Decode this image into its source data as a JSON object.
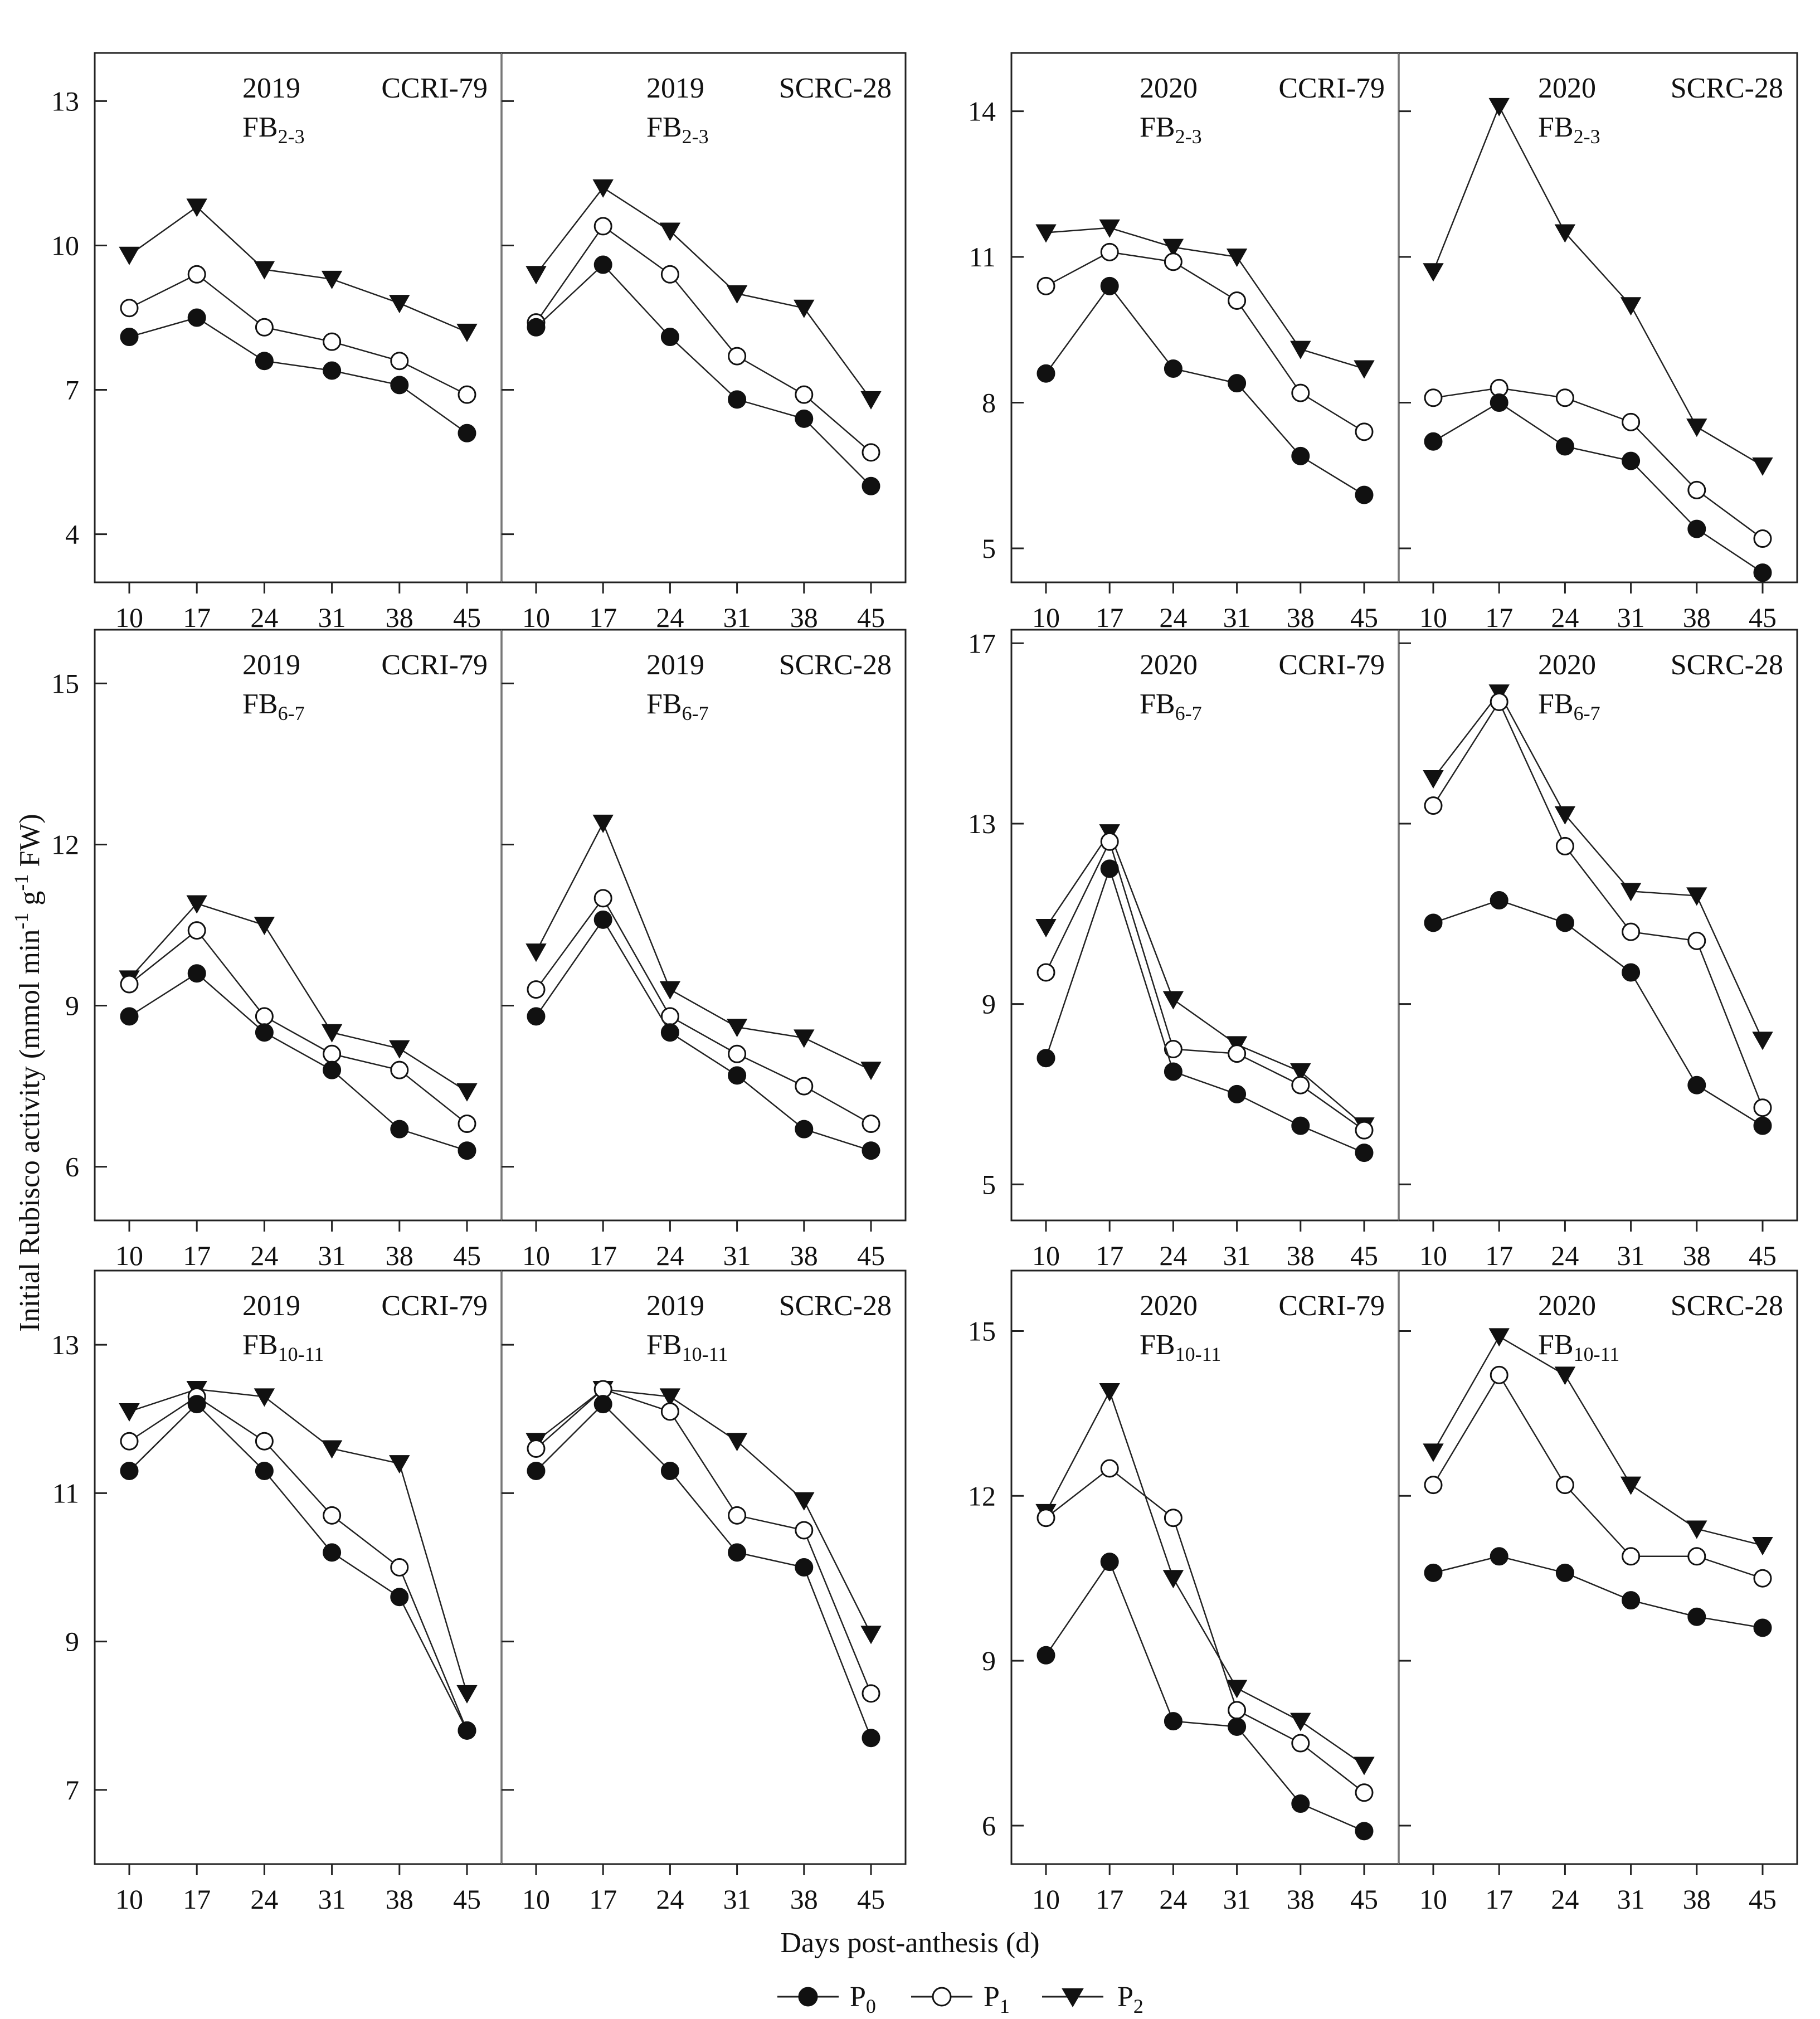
{
  "figure": {
    "ylabel": "Initial Rubisco activity (mmol min",
    "ylabel_sup1": "-1",
    "ylabel_mid": " g",
    "ylabel_sup2": "-1",
    "ylabel_end": " FW)",
    "xlabel": "Days post-anthesis (d)",
    "legend": [
      {
        "marker": "filled-circle",
        "label": "P",
        "sub": "0"
      },
      {
        "marker": "open-circle",
        "label": "P",
        "sub": "1"
      },
      {
        "marker": "filled-triangle",
        "label": "P",
        "sub": "2"
      }
    ]
  },
  "chart_data": [
    {
      "type": "line",
      "panel": "2019-CCRI-79-FB2-3",
      "title": {
        "year": "2019",
        "cultivar": "CCRI-79",
        "fb": "FB",
        "fb_sub": "2-3"
      },
      "x": [
        10,
        17,
        24,
        31,
        38,
        45
      ],
      "ylim": [
        3,
        14
      ],
      "yticks": [
        4,
        7,
        10,
        13
      ],
      "series": [
        {
          "name": "P0",
          "values": [
            8.1,
            8.5,
            7.6,
            7.4,
            7.1,
            6.1
          ]
        },
        {
          "name": "P1",
          "values": [
            8.7,
            9.4,
            8.3,
            8.0,
            7.6,
            6.9
          ]
        },
        {
          "name": "P2",
          "values": [
            9.8,
            10.8,
            9.5,
            9.3,
            8.8,
            8.2
          ]
        }
      ]
    },
    {
      "type": "line",
      "panel": "2019-SCRC-28-FB2-3",
      "title": {
        "year": "2019",
        "cultivar": "SCRC-28",
        "fb": "FB",
        "fb_sub": "2-3"
      },
      "x": [
        10,
        17,
        24,
        31,
        38,
        45
      ],
      "ylim": [
        3,
        14
      ],
      "yticks": [
        4,
        7,
        10,
        13
      ],
      "series": [
        {
          "name": "P0",
          "values": [
            8.3,
            9.6,
            8.1,
            6.8,
            6.4,
            5.0
          ]
        },
        {
          "name": "P1",
          "values": [
            8.4,
            10.4,
            9.4,
            7.7,
            6.9,
            5.7
          ]
        },
        {
          "name": "P2",
          "values": [
            9.4,
            11.2,
            10.3,
            9.0,
            8.7,
            6.8
          ]
        }
      ]
    },
    {
      "type": "line",
      "panel": "2020-CCRI-79-FB2-3",
      "title": {
        "year": "2020",
        "cultivar": "CCRI-79",
        "fb": "FB",
        "fb_sub": "2-3"
      },
      "x": [
        10,
        17,
        24,
        31,
        38,
        45
      ],
      "ylim": [
        4.3,
        15.2
      ],
      "yticks": [
        5,
        8,
        11,
        14
      ],
      "series": [
        {
          "name": "P0",
          "values": [
            8.6,
            10.4,
            8.7,
            8.4,
            6.9,
            6.1
          ]
        },
        {
          "name": "P1",
          "values": [
            10.4,
            11.1,
            10.9,
            10.1,
            8.2,
            7.4
          ]
        },
        {
          "name": "P2",
          "values": [
            11.5,
            11.6,
            11.2,
            11.0,
            9.1,
            8.7
          ]
        }
      ]
    },
    {
      "type": "line",
      "panel": "2020-SCRC-28-FB2-3",
      "title": {
        "year": "2020",
        "cultivar": "SCRC-28",
        "fb": "FB",
        "fb_sub": "2-3"
      },
      "x": [
        10,
        17,
        24,
        31,
        38,
        45
      ],
      "ylim": [
        4.3,
        15.2
      ],
      "yticks": [
        5,
        8,
        11,
        14
      ],
      "series": [
        {
          "name": "P0",
          "values": [
            7.2,
            8.0,
            7.1,
            6.8,
            5.4,
            4.5
          ]
        },
        {
          "name": "P1",
          "values": [
            8.1,
            8.3,
            8.1,
            7.6,
            6.2,
            5.2
          ]
        },
        {
          "name": "P2",
          "values": [
            10.7,
            14.1,
            11.5,
            10.0,
            7.5,
            6.7
          ]
        }
      ]
    },
    {
      "type": "line",
      "panel": "2019-CCRI-79-FB6-7",
      "title": {
        "year": "2019",
        "cultivar": "CCRI-79",
        "fb": "FB",
        "fb_sub": "6-7"
      },
      "x": [
        10,
        17,
        24,
        31,
        38,
        45
      ],
      "ylim": [
        5,
        16
      ],
      "yticks": [
        6,
        9,
        12,
        15
      ],
      "series": [
        {
          "name": "P0",
          "values": [
            8.8,
            9.6,
            8.5,
            7.8,
            6.7,
            6.3
          ]
        },
        {
          "name": "P1",
          "values": [
            9.4,
            10.4,
            8.8,
            8.1,
            7.8,
            6.8
          ]
        },
        {
          "name": "P2",
          "values": [
            9.5,
            10.9,
            10.5,
            8.5,
            8.2,
            7.4
          ]
        }
      ]
    },
    {
      "type": "line",
      "panel": "2019-SCRC-28-FB6-7",
      "title": {
        "year": "2019",
        "cultivar": "SCRC-28",
        "fb": "FB",
        "fb_sub": "6-7"
      },
      "x": [
        10,
        17,
        24,
        31,
        38,
        45
      ],
      "ylim": [
        5,
        16
      ],
      "yticks": [
        6,
        9,
        12,
        15
      ],
      "series": [
        {
          "name": "P0",
          "values": [
            8.8,
            10.6,
            8.5,
            7.7,
            6.7,
            6.3
          ]
        },
        {
          "name": "P1",
          "values": [
            9.3,
            11.0,
            8.8,
            8.1,
            7.5,
            6.8
          ]
        },
        {
          "name": "P2",
          "values": [
            10.0,
            12.4,
            9.3,
            8.6,
            8.4,
            7.8
          ]
        }
      ]
    },
    {
      "type": "line",
      "panel": "2020-CCRI-79-FB6-7",
      "title": {
        "year": "2020",
        "cultivar": "CCRI-79",
        "fb": "FB",
        "fb_sub": "6-7"
      },
      "x": [
        10,
        17,
        24,
        31,
        38,
        45
      ],
      "ylim": [
        4.2,
        17.3
      ],
      "yticks": [
        5,
        9,
        13,
        17
      ],
      "series": [
        {
          "name": "P0",
          "values": [
            7.8,
            12.0,
            7.5,
            7.0,
            6.3,
            5.7
          ]
        },
        {
          "name": "P1",
          "values": [
            9.7,
            12.6,
            8.0,
            7.9,
            7.2,
            6.2
          ]
        },
        {
          "name": "P2",
          "values": [
            10.7,
            12.8,
            9.1,
            8.1,
            7.5,
            6.3
          ]
        }
      ]
    },
    {
      "type": "line",
      "panel": "2020-SCRC-28-FB6-7",
      "title": {
        "year": "2020",
        "cultivar": "SCRC-28",
        "fb": "FB",
        "fb_sub": "6-7"
      },
      "x": [
        10,
        17,
        24,
        31,
        38,
        45
      ],
      "ylim": [
        4.2,
        17.3
      ],
      "yticks": [
        5,
        9,
        13,
        17
      ],
      "series": [
        {
          "name": "P0",
          "values": [
            10.8,
            11.3,
            10.8,
            9.7,
            7.2,
            6.3
          ]
        },
        {
          "name": "P1",
          "values": [
            13.4,
            15.7,
            12.5,
            10.6,
            10.4,
            6.7
          ]
        },
        {
          "name": "P2",
          "values": [
            14.0,
            15.9,
            13.2,
            11.5,
            11.4,
            8.2
          ]
        }
      ]
    },
    {
      "type": "line",
      "panel": "2019-CCRI-79-FB10-11",
      "title": {
        "year": "2019",
        "cultivar": "CCRI-79",
        "fb": "FB",
        "fb_sub": "10-11"
      },
      "x": [
        10,
        17,
        24,
        31,
        38,
        45
      ],
      "ylim": [
        6,
        14
      ],
      "yticks": [
        7,
        9,
        11,
        13
      ],
      "series": [
        {
          "name": "P0",
          "values": [
            11.3,
            12.2,
            11.3,
            10.2,
            9.6,
            7.8
          ]
        },
        {
          "name": "P1",
          "values": [
            11.7,
            12.3,
            11.7,
            10.7,
            10.0,
            7.8
          ]
        },
        {
          "name": "P2",
          "values": [
            12.1,
            12.4,
            12.3,
            11.6,
            11.4,
            8.3
          ]
        }
      ]
    },
    {
      "type": "line",
      "panel": "2019-SCRC-28-FB10-11",
      "title": {
        "year": "2019",
        "cultivar": "SCRC-28",
        "fb": "FB",
        "fb_sub": "10-11"
      },
      "x": [
        10,
        17,
        24,
        31,
        38,
        45
      ],
      "ylim": [
        6,
        14
      ],
      "yticks": [
        7,
        9,
        11,
        13
      ],
      "series": [
        {
          "name": "P0",
          "values": [
            11.3,
            12.2,
            11.3,
            10.2,
            10.0,
            7.7
          ]
        },
        {
          "name": "P1",
          "values": [
            11.6,
            12.4,
            12.1,
            10.7,
            10.5,
            8.3
          ]
        },
        {
          "name": "P2",
          "values": [
            11.7,
            12.4,
            12.3,
            11.7,
            10.9,
            9.1
          ]
        }
      ]
    },
    {
      "type": "line",
      "panel": "2020-CCRI-79-FB10-11",
      "title": {
        "year": "2020",
        "cultivar": "CCRI-79",
        "fb": "FB",
        "fb_sub": "10-11"
      },
      "x": [
        10,
        17,
        24,
        31,
        38,
        45
      ],
      "ylim": [
        5.3,
        16.1
      ],
      "yticks": [
        6,
        9,
        12,
        15
      ],
      "series": [
        {
          "name": "P0",
          "values": [
            9.1,
            10.8,
            7.9,
            7.8,
            6.4,
            5.9
          ]
        },
        {
          "name": "P1",
          "values": [
            11.6,
            12.5,
            11.6,
            8.1,
            7.5,
            6.6
          ]
        },
        {
          "name": "P2",
          "values": [
            11.7,
            13.9,
            10.5,
            8.5,
            7.9,
            7.1
          ]
        }
      ]
    },
    {
      "type": "line",
      "panel": "2020-SCRC-28-FB10-11",
      "title": {
        "year": "2020",
        "cultivar": "SCRC-28",
        "fb": "FB",
        "fb_sub": "10-11"
      },
      "x": [
        10,
        17,
        24,
        31,
        38,
        45
      ],
      "ylim": [
        5.3,
        16.1
      ],
      "yticks": [
        6,
        9,
        12,
        15
      ],
      "series": [
        {
          "name": "P0",
          "values": [
            10.6,
            10.9,
            10.6,
            10.1,
            9.8,
            9.6
          ]
        },
        {
          "name": "P1",
          "values": [
            12.2,
            14.2,
            12.2,
            10.9,
            10.9,
            10.5
          ]
        },
        {
          "name": "P2",
          "values": [
            12.8,
            14.9,
            14.2,
            12.2,
            11.4,
            11.1
          ]
        }
      ]
    }
  ]
}
